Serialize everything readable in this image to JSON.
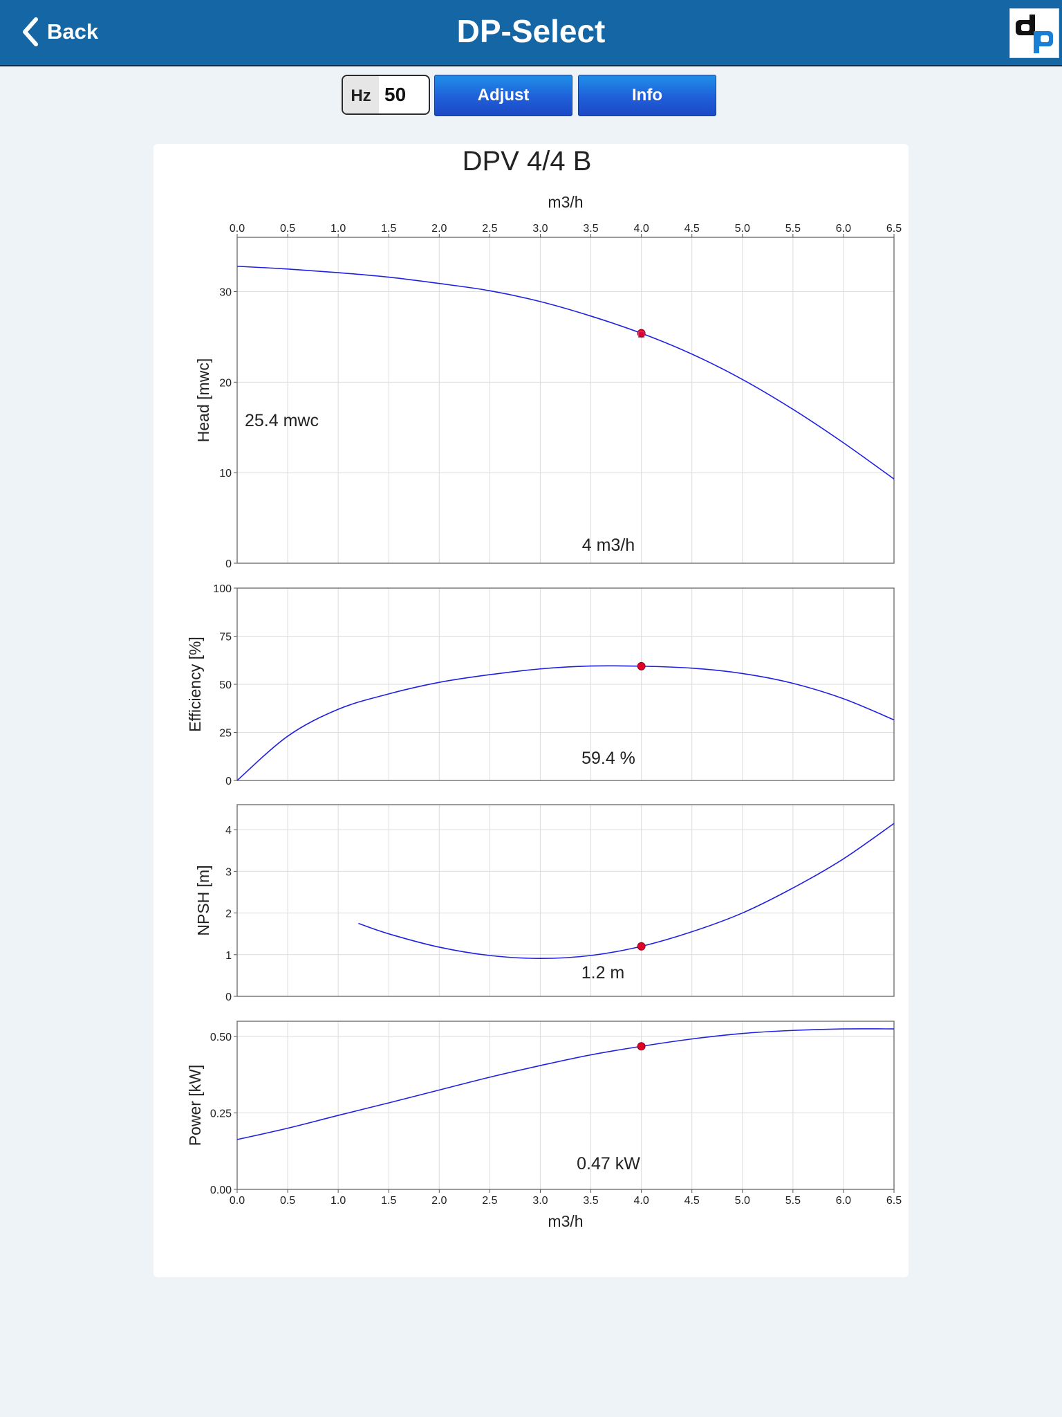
{
  "header": {
    "back_label": "Back",
    "title": "DP-Select"
  },
  "controls": {
    "hz_unit": "Hz",
    "hz_value": "50",
    "adjust_label": "Adjust",
    "info_label": "Info"
  },
  "colors": {
    "header_bg": "#1466a5",
    "button_blue": "#1f5fd9",
    "curve": "#2020e0",
    "point": "#e0002a"
  },
  "chart_data": {
    "type": "line",
    "title": "DPV 4/4 B",
    "xlabel": "m3/h",
    "xlim": [
      0,
      6.5
    ],
    "x_ticks": [
      "0.0",
      "0.5",
      "1.0",
      "1.5",
      "2.0",
      "2.5",
      "3.0",
      "3.5",
      "4.0",
      "4.5",
      "5.0",
      "5.5",
      "6.0",
      "6.5"
    ],
    "operating_point_x": 4.0,
    "grid": true,
    "panels": [
      {
        "ylabel": "Head [mwc]",
        "ylim": [
          0,
          36
        ],
        "y_ticks": [
          "0",
          "10",
          "20",
          "30"
        ],
        "y_tick_values": [
          0,
          10,
          20,
          30
        ],
        "series": [
          {
            "x": [
              0,
              0.5,
              1,
              1.5,
              2,
              2.5,
              3,
              3.5,
              4,
              4.5,
              5,
              5.5,
              6,
              6.5
            ],
            "y": [
              32.8,
              32.5,
              32.1,
              31.6,
              30.9,
              30.1,
              28.9,
              27.3,
              25.4,
              23.1,
              20.3,
              17.0,
              13.3,
              9.3
            ]
          }
        ],
        "point_y": 25.4,
        "readouts": [
          "25.4 mwc",
          "4 m3/h"
        ]
      },
      {
        "ylabel": "Efficiency [%]",
        "ylim": [
          0,
          100
        ],
        "y_ticks": [
          "0",
          "25",
          "50",
          "75",
          "100"
        ],
        "y_tick_values": [
          0,
          25,
          50,
          75,
          100
        ],
        "series": [
          {
            "x": [
              0,
              0.5,
              1,
              1.5,
              2,
              2.5,
              3,
              3.5,
              4,
              4.5,
              5,
              5.5,
              6,
              6.5
            ],
            "y": [
              0,
              23,
              37,
              45,
              51,
              55,
              58,
              59.5,
              59.4,
              58.4,
              55.6,
              50.5,
              42.5,
              31.5
            ]
          }
        ],
        "point_y": 59.4,
        "readouts": [
          "59.4 %"
        ]
      },
      {
        "ylabel": "NPSH [m]",
        "ylim": [
          0,
          4.6
        ],
        "y_ticks": [
          "0",
          "1",
          "2",
          "3",
          "4"
        ],
        "y_tick_values": [
          0,
          1,
          2,
          3,
          4
        ],
        "series": [
          {
            "x": [
              1.2,
              1.5,
              2,
              2.5,
              3,
              3.5,
              4,
              4.5,
              5,
              5.5,
              6,
              6.5
            ],
            "y": [
              1.75,
              1.5,
              1.18,
              0.98,
              0.91,
              0.98,
              1.2,
              1.55,
              2.0,
              2.6,
              3.3,
              4.15
            ]
          }
        ],
        "point_y": 1.2,
        "readouts": [
          "1.2 m"
        ]
      },
      {
        "ylabel": "Power [kW]",
        "ylim": [
          0,
          0.55
        ],
        "y_ticks": [
          "0.00",
          "0.25",
          "0.50"
        ],
        "y_tick_values": [
          0,
          0.25,
          0.5
        ],
        "series": [
          {
            "x": [
              0,
              0.5,
              1,
              1.5,
              2,
              2.5,
              3,
              3.5,
              4,
              4.5,
              5,
              5.5,
              6,
              6.5
            ],
            "y": [
              0.163,
              0.2,
              0.242,
              0.283,
              0.325,
              0.367,
              0.405,
              0.44,
              0.468,
              0.492,
              0.51,
              0.52,
              0.525,
              0.525
            ]
          }
        ],
        "point_y": 0.468,
        "readouts": [
          "0.47 kW"
        ]
      }
    ]
  }
}
